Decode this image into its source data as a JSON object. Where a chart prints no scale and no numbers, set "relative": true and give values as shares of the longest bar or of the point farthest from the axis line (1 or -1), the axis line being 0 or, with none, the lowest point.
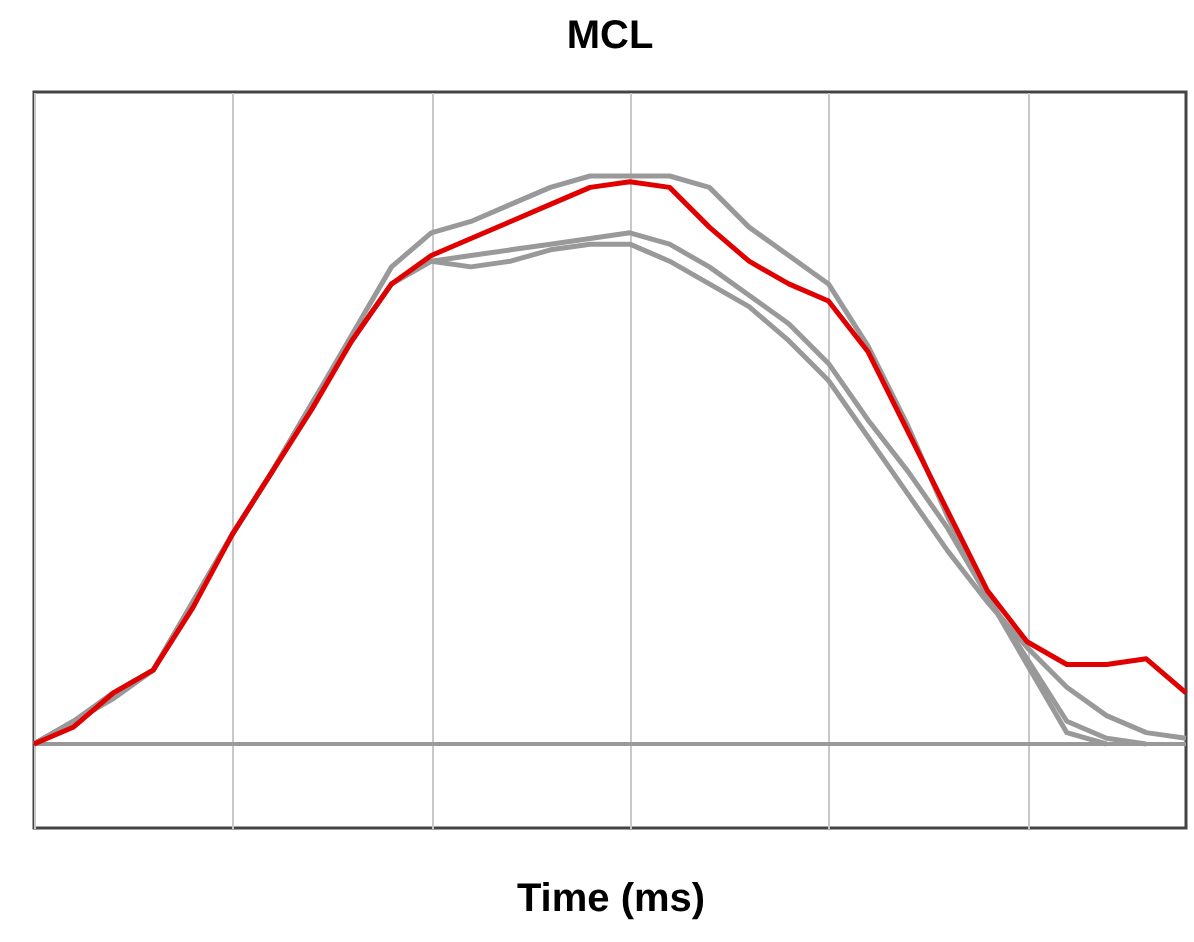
{
  "chart_data": {
    "type": "line",
    "title": "MCL",
    "xlabel": "Time (ms)",
    "relative": true,
    "grid": true,
    "tick_labels": false,
    "marker": "none",
    "line_style": "solid",
    "categories": [
      null,
      null,
      null,
      null,
      null,
      null,
      null,
      null,
      null,
      null,
      null,
      null,
      null,
      null,
      null,
      null,
      null,
      null,
      null,
      null,
      null,
      null,
      null,
      null,
      null,
      null,
      null,
      null,
      null,
      null
    ],
    "series": [
      {
        "color": "#999999",
        "values": [
          0,
          0.04,
          0.08,
          0.13,
          0.25,
          0.37,
          0.48,
          0.6,
          0.72,
          0.84,
          0.9,
          0.92,
          0.95,
          0.98,
          1,
          1,
          1,
          0.98,
          0.91,
          0.86,
          0.81,
          0.7,
          0.56,
          0.4,
          0.26,
          0.15,
          0.04,
          0.01,
          0,
          null
        ]
      },
      {
        "color": "#999999",
        "values": [
          0,
          0.04,
          0.09,
          0.13,
          0.25,
          0.37,
          0.48,
          0.6,
          0.71,
          0.81,
          0.85,
          0.86,
          0.87,
          0.88,
          0.89,
          0.9,
          0.88,
          0.84,
          0.79,
          0.74,
          0.67,
          0.57,
          0.48,
          0.38,
          0.26,
          0.14,
          0.02,
          0,
          null,
          null
        ]
      },
      {
        "color": "#999999",
        "values": [
          0,
          0.04,
          0.09,
          0.13,
          0.25,
          0.37,
          0.48,
          0.6,
          0.71,
          0.81,
          0.85,
          0.84,
          0.85,
          0.87,
          0.88,
          0.88,
          0.85,
          0.81,
          0.77,
          0.71,
          0.64,
          0.54,
          0.44,
          0.34,
          0.25,
          0.17,
          0.1,
          0.05,
          0.02,
          0.01
        ]
      },
      {
        "color": "#e00000",
        "values": [
          0,
          0.03,
          0.09,
          0.13,
          0.24,
          0.37,
          0.48,
          0.59,
          0.71,
          0.81,
          0.86,
          0.89,
          0.92,
          0.95,
          0.98,
          0.99,
          0.98,
          0.91,
          0.85,
          0.81,
          0.78,
          0.69,
          0.55,
          0.41,
          0.27,
          0.18,
          0.14,
          0.14,
          0.15,
          0.09
        ]
      }
    ]
  }
}
